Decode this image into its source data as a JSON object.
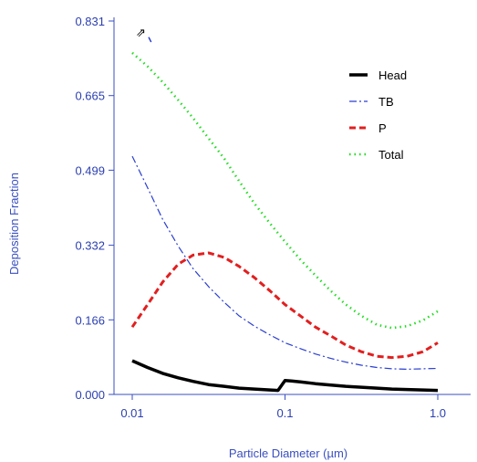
{
  "chart_data": {
    "type": "line",
    "xlabel": "Particle Diameter (µm)",
    "ylabel": "Deposition Fraction",
    "x_scale": "log",
    "xlim": [
      0.01,
      1.0
    ],
    "ylim": [
      0.0,
      0.831
    ],
    "x_ticks": [
      {
        "value": 0.01,
        "label": "0.01"
      },
      {
        "value": 0.1,
        "label": "0.1"
      },
      {
        "value": 1.0,
        "label": "1.0"
      }
    ],
    "y_ticks": [
      {
        "value": 0.0,
        "label": "0.000"
      },
      {
        "value": 0.166,
        "label": "0.166"
      },
      {
        "value": 0.332,
        "label": "0.332"
      },
      {
        "value": 0.499,
        "label": "0.499"
      },
      {
        "value": 0.665,
        "label": "0.665"
      },
      {
        "value": 0.831,
        "label": "0.831"
      }
    ],
    "grid": false,
    "legend_position": "top-right",
    "series": [
      {
        "name": "Head",
        "color": "#000000",
        "style": "solid",
        "x": [
          0.01,
          0.0126,
          0.0158,
          0.02,
          0.025,
          0.0316,
          0.04,
          0.05,
          0.063,
          0.08,
          0.09,
          0.1,
          0.11,
          0.126,
          0.158,
          0.2,
          0.25,
          0.316,
          0.4,
          0.5,
          0.63,
          0.8,
          1.0
        ],
        "y": [
          0.075,
          0.06,
          0.047,
          0.037,
          0.029,
          0.022,
          0.018,
          0.014,
          0.012,
          0.01,
          0.009,
          0.031,
          0.03,
          0.028,
          0.024,
          0.021,
          0.018,
          0.016,
          0.014,
          0.012,
          0.011,
          0.01,
          0.009
        ]
      },
      {
        "name": "TB",
        "color": "#2a3fd0",
        "style": "dashdot",
        "x": [
          0.01,
          0.0126,
          0.0158,
          0.02,
          0.025,
          0.0316,
          0.04,
          0.05,
          0.063,
          0.08,
          0.1,
          0.126,
          0.158,
          0.2,
          0.25,
          0.316,
          0.4,
          0.5,
          0.63,
          0.8,
          1.0
        ],
        "y": [
          0.53,
          0.46,
          0.39,
          0.33,
          0.28,
          0.24,
          0.205,
          0.175,
          0.152,
          0.132,
          0.115,
          0.102,
          0.09,
          0.08,
          0.072,
          0.065,
          0.06,
          0.057,
          0.056,
          0.057,
          0.058
        ],
        "extra_segment": {
          "x": [
            0.0128,
            0.0133
          ],
          "y": [
            0.795,
            0.784
          ]
        }
      },
      {
        "name": "P",
        "color": "#e21f1f",
        "style": "dashed",
        "x": [
          0.01,
          0.0126,
          0.0158,
          0.02,
          0.025,
          0.0316,
          0.04,
          0.05,
          0.063,
          0.08,
          0.1,
          0.126,
          0.158,
          0.2,
          0.25,
          0.316,
          0.4,
          0.5,
          0.63,
          0.8,
          1.0
        ],
        "y": [
          0.15,
          0.2,
          0.25,
          0.29,
          0.31,
          0.315,
          0.305,
          0.285,
          0.26,
          0.23,
          0.2,
          0.175,
          0.15,
          0.13,
          0.11,
          0.095,
          0.085,
          0.082,
          0.085,
          0.095,
          0.115
        ]
      },
      {
        "name": "Total",
        "color": "#22dd22",
        "style": "dotted",
        "x": [
          0.01,
          0.0126,
          0.0158,
          0.02,
          0.025,
          0.0316,
          0.04,
          0.05,
          0.063,
          0.08,
          0.1,
          0.126,
          0.158,
          0.2,
          0.25,
          0.316,
          0.4,
          0.5,
          0.63,
          0.8,
          1.0
        ],
        "y": [
          0.76,
          0.73,
          0.695,
          0.655,
          0.615,
          0.57,
          0.525,
          0.475,
          0.425,
          0.38,
          0.34,
          0.3,
          0.265,
          0.23,
          0.2,
          0.175,
          0.155,
          0.148,
          0.152,
          0.165,
          0.185
        ]
      }
    ]
  },
  "annotations": {
    "arrow_glyph": "⇗"
  }
}
